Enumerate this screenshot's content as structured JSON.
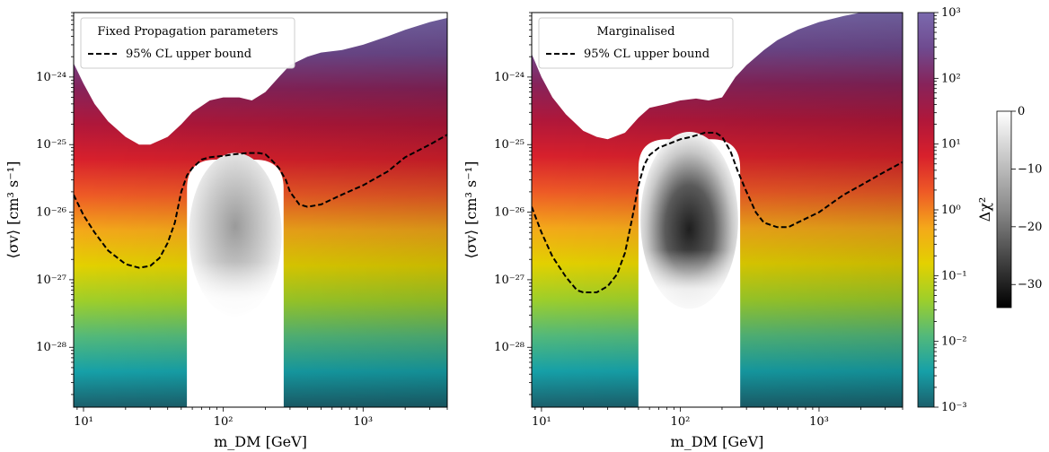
{
  "chart_data": [
    {
      "type": "heatmap",
      "panel_title": "",
      "xlabel": "m_DM [GeV]",
      "ylabel": "⟨σv⟩ [cm³ s⁻¹]",
      "xscale": "log",
      "yscale": "log",
      "xlim": [
        8.5,
        4000
      ],
      "ylim": [
        1.3e-29,
        9e-24
      ],
      "x_ticks": [
        {
          "value": 10,
          "label": "10¹"
        },
        {
          "value": 100,
          "label": "10²"
        },
        {
          "value": 1000,
          "label": "10³"
        }
      ],
      "y_ticks": [
        {
          "value": 1e-28,
          "label": "10⁻²⁸"
        },
        {
          "value": 1e-27,
          "label": "10⁻²⁷"
        },
        {
          "value": 1e-26,
          "label": "10⁻²⁶"
        },
        {
          "value": 1e-25,
          "label": "10⁻²⁵"
        },
        {
          "value": 1e-24,
          "label": "10⁻²⁴"
        }
      ],
      "legend": {
        "title": "Fixed Propagation parameters",
        "entries": [
          "95% CL upper bound"
        ],
        "placement": "top-left"
      },
      "cl_boundary": {
        "name": "95% CL upper bound",
        "x": [
          8.5,
          10,
          12,
          15,
          20,
          25,
          30,
          35,
          40,
          45,
          50,
          55,
          60,
          70,
          80,
          100,
          120,
          150,
          180,
          200,
          220,
          250,
          280,
          300,
          350,
          400,
          500,
          700,
          1000,
          1500,
          2000,
          3000,
          4000
        ],
        "y": [
          1.8e-26,
          9e-27,
          5e-27,
          2.7e-27,
          1.7e-27,
          1.5e-27,
          1.6e-27,
          2.1e-27,
          3.5e-27,
          7e-27,
          2e-26,
          3.5e-26,
          4.5e-26,
          6e-26,
          6.5e-26,
          6.8e-26,
          7.2e-26,
          7.5e-26,
          7.5e-26,
          7.2e-26,
          6e-26,
          4.5e-26,
          3e-26,
          2e-26,
          1.3e-26,
          1.2e-26,
          1.3e-26,
          1.8e-26,
          2.5e-26,
          4e-26,
          6.5e-26,
          1e-25,
          1.4e-25
        ]
      },
      "excluded_edge": {
        "x": [
          8.5,
          10,
          12,
          15,
          20,
          25,
          30,
          40,
          50,
          60,
          80,
          100,
          130,
          160,
          200,
          250,
          300,
          400,
          500,
          700,
          1000,
          1500,
          2000,
          3000,
          4000
        ],
        "y": [
          1.6e-24,
          8e-25,
          4e-25,
          2.2e-25,
          1.3e-25,
          1e-25,
          1e-25,
          1.3e-25,
          2e-25,
          3e-25,
          4.5e-25,
          5e-25,
          5e-25,
          4.5e-25,
          6e-25,
          1e-24,
          1.5e-24,
          2e-24,
          2.3e-24,
          2.5e-24,
          3e-24,
          4e-24,
          5e-24,
          6.5e-24,
          7.5e-24
        ]
      },
      "allowed_region": {
        "x_range": [
          55,
          270
        ],
        "y_top": 6e-26
      }
    },
    {
      "type": "heatmap",
      "panel_title": "",
      "xlabel": "m_DM [GeV]",
      "ylabel": "⟨σv⟩ [cm³ s⁻¹]",
      "xscale": "log",
      "yscale": "log",
      "xlim": [
        8.5,
        4000
      ],
      "ylim": [
        1.3e-29,
        9e-24
      ],
      "x_ticks": [
        {
          "value": 10,
          "label": "10¹"
        },
        {
          "value": 100,
          "label": "10²"
        },
        {
          "value": 1000,
          "label": "10³"
        }
      ],
      "y_ticks": [
        {
          "value": 1e-28,
          "label": "10⁻²⁸"
        },
        {
          "value": 1e-27,
          "label": "10⁻²⁷"
        },
        {
          "value": 1e-26,
          "label": "10⁻²⁶"
        },
        {
          "value": 1e-25,
          "label": "10⁻²⁵"
        },
        {
          "value": 1e-24,
          "label": "10⁻²⁴"
        }
      ],
      "legend": {
        "title": "Marginalised",
        "entries": [
          "95% CL upper bound"
        ],
        "placement": "top-left"
      },
      "cl_boundary": {
        "name": "95% CL upper bound",
        "x": [
          8.5,
          10,
          12,
          15,
          18,
          20,
          25,
          30,
          35,
          40,
          45,
          50,
          55,
          60,
          70,
          80,
          100,
          120,
          150,
          180,
          200,
          230,
          260,
          300,
          350,
          400,
          500,
          600,
          700,
          1000,
          1500,
          2000,
          3000,
          4000
        ],
        "y": [
          1.2e-26,
          5e-27,
          2.2e-27,
          1.1e-27,
          7e-28,
          6.5e-28,
          6.5e-28,
          8e-28,
          1.2e-27,
          2.5e-27,
          8e-27,
          2.5e-26,
          5e-26,
          7e-26,
          9e-26,
          1e-25,
          1.2e-25,
          1.3e-25,
          1.5e-25,
          1.5e-25,
          1.3e-25,
          8e-26,
          4e-26,
          2e-26,
          1e-26,
          7e-27,
          6e-27,
          6e-27,
          7e-27,
          1e-26,
          1.8e-26,
          2.5e-26,
          4e-26,
          5.5e-26
        ]
      },
      "excluded_edge": {
        "x": [
          8.5,
          10,
          12,
          15,
          20,
          25,
          30,
          40,
          50,
          60,
          80,
          100,
          130,
          160,
          200,
          250,
          300,
          400,
          500,
          700,
          1000,
          1500,
          2000,
          3000,
          4000
        ],
        "y": [
          2.2e-24,
          1e-24,
          5e-25,
          2.8e-25,
          1.6e-25,
          1.3e-25,
          1.2e-25,
          1.5e-25,
          2.5e-25,
          3.5e-25,
          4e-25,
          4.5e-25,
          4.8e-25,
          4.5e-25,
          5e-25,
          1e-24,
          1.5e-24,
          2.5e-24,
          3.5e-24,
          5e-24,
          6.5e-24,
          8e-24,
          9e-24,
          9e-24,
          9e-24
        ]
      },
      "allowed_region": {
        "x_range": [
          50,
          270
        ],
        "y_top": 1.2e-25
      }
    }
  ],
  "colorbar_main": {
    "label": "",
    "scale": "log",
    "range": [
      0.001,
      1000
    ],
    "ticks": [
      {
        "value": 1000,
        "label": "10³"
      },
      {
        "value": 100,
        "label": "10²"
      },
      {
        "value": 10,
        "label": "10¹"
      },
      {
        "value": 1,
        "label": "10⁰"
      },
      {
        "value": 0.1,
        "label": "10⁻¹"
      },
      {
        "value": 0.01,
        "label": "10⁻²"
      },
      {
        "value": 0.001,
        "label": "10⁻³"
      }
    ],
    "colors": [
      "#1b5f6b",
      "#16a0a8",
      "#53b97a",
      "#9ecf2a",
      "#e3d100",
      "#f4a81a",
      "#ee5a26",
      "#d8202c",
      "#b0173a",
      "#87235a",
      "#6f4a8f",
      "#7b6aae"
    ]
  },
  "colorbar_delta": {
    "label": "Δχ²",
    "range": [
      -34,
      0
    ],
    "ticks": [
      {
        "value": 0,
        "label": "0"
      },
      {
        "value": -10,
        "label": "−10"
      },
      {
        "value": -20,
        "label": "−20"
      },
      {
        "value": -30,
        "label": "−30"
      }
    ]
  }
}
